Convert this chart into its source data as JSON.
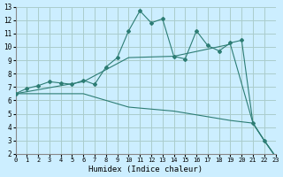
{
  "xlabel": "Humidex (Indice chaleur)",
  "ylabel": "",
  "bg_color": "#cceeff",
  "grid_color": "#aacccc",
  "line_color": "#2d7d74",
  "xlim": [
    0,
    23
  ],
  "ylim": [
    2,
    13
  ],
  "xticks": [
    0,
    1,
    2,
    3,
    4,
    5,
    6,
    7,
    8,
    9,
    10,
    11,
    12,
    13,
    14,
    15,
    16,
    17,
    18,
    19,
    20,
    21,
    22,
    23
  ],
  "yticks": [
    2,
    3,
    4,
    5,
    6,
    7,
    8,
    9,
    10,
    11,
    12,
    13
  ],
  "line1_x": [
    0,
    1,
    2,
    3,
    4,
    5,
    6,
    7,
    8,
    9,
    10,
    11,
    12,
    13,
    14,
    15,
    16,
    17,
    18,
    19,
    20,
    21,
    22,
    23
  ],
  "line1_y": [
    6.5,
    6.9,
    7.1,
    7.4,
    7.3,
    7.2,
    7.5,
    7.2,
    8.5,
    9.2,
    11.2,
    12.7,
    11.8,
    12.1,
    9.3,
    9.1,
    11.2,
    10.1,
    9.7,
    10.3,
    10.5,
    4.3,
    3.0,
    1.8
  ],
  "line2_x": [
    0,
    6,
    10,
    14,
    19,
    21,
    22,
    23
  ],
  "line2_y": [
    6.5,
    7.4,
    9.2,
    9.3,
    10.2,
    4.3,
    3.0,
    1.8
  ],
  "line3_x": [
    0,
    6,
    10,
    14,
    19,
    21,
    22,
    23
  ],
  "line3_y": [
    6.5,
    6.5,
    5.5,
    5.2,
    4.5,
    4.3,
    3.0,
    1.8
  ]
}
